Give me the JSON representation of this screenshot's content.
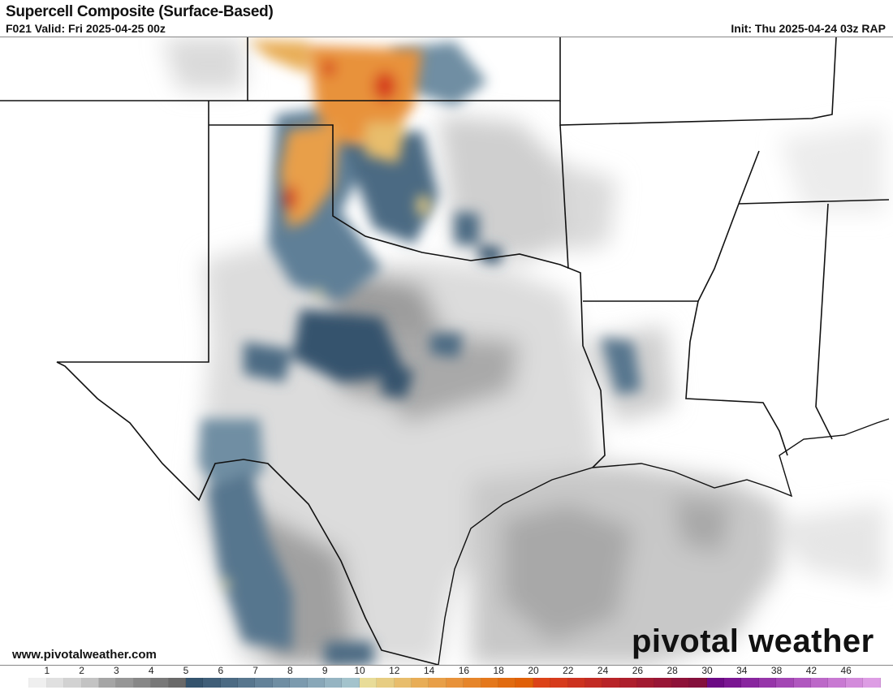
{
  "header": {
    "title": "Supercell Composite (Surface-Based)",
    "valid": "F021 Valid: Fri 2025-04-25 00z",
    "init": "Init: Thu 2025-04-24 03z RAP"
  },
  "footer": {
    "website": "www.pivotalweather.com",
    "logo": "pivotal weather"
  },
  "colorbar": {
    "labels": [
      "1",
      "2",
      "3",
      "4",
      "5",
      "6",
      "7",
      "8",
      "9",
      "10",
      "12",
      "14",
      "16",
      "18",
      "20",
      "22",
      "24",
      "26",
      "28",
      "30",
      "34",
      "38",
      "42",
      "46"
    ],
    "colors": [
      "#ffffff",
      "#efefef",
      "#e0e0e0",
      "#d2d2d2",
      "#c3c3c3",
      "#a5a5a5",
      "#969696",
      "#878787",
      "#787878",
      "#696969",
      "#34536d",
      "#3f5e78",
      "#4b6a83",
      "#57768e",
      "#638299",
      "#6f8ea3",
      "#7b9aae",
      "#88a7b8",
      "#95b4c2",
      "#a3c3cc",
      "#e8dc98",
      "#e7cd82",
      "#e8bd6c",
      "#e8ad56",
      "#e89f48",
      "#e8923a",
      "#e6852a",
      "#e4781c",
      "#e16b10",
      "#e06008",
      "#dc4318",
      "#d63b1c",
      "#cc321f",
      "#c22b24",
      "#b82428",
      "#ad1f2d",
      "#a21a31",
      "#981636",
      "#8e1239",
      "#84103c",
      "#6c0a84",
      "#7a1692",
      "#88259e",
      "#9635a9",
      "#a346b4",
      "#b057bf",
      "#bc68c8",
      "#c879d2",
      "#d38bdb",
      "#dd9de4"
    ]
  }
}
